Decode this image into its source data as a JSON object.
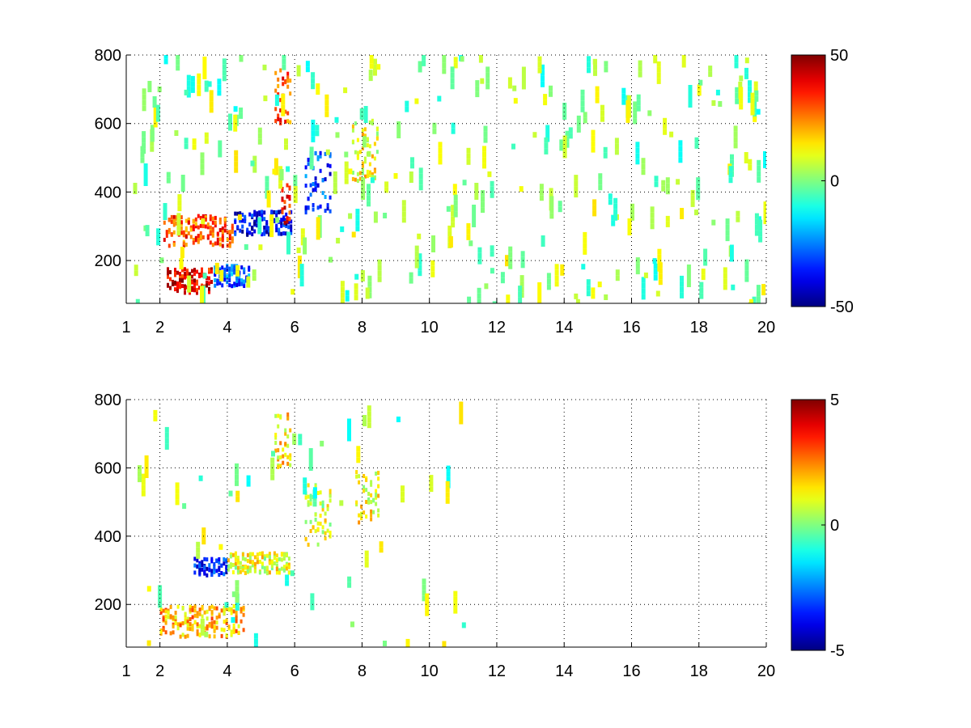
{
  "figure": {
    "background": "#ffffff"
  },
  "chart_data": [
    {
      "type": "heatmap",
      "colormap": "jet",
      "xlim": [
        1,
        20
      ],
      "ylim": [
        75,
        800
      ],
      "x_ticks": [
        {
          "v": 1,
          "label": "1"
        },
        {
          "v": 2,
          "label": "2"
        },
        {
          "v": 4,
          "label": "4"
        },
        {
          "v": 6,
          "label": "6"
        },
        {
          "v": 8,
          "label": "8"
        },
        {
          "v": 10,
          "label": "10"
        },
        {
          "v": 12,
          "label": "12"
        },
        {
          "v": 14,
          "label": "14"
        },
        {
          "v": 16,
          "label": "16"
        },
        {
          "v": 18,
          "label": "18"
        },
        {
          "v": 20,
          "label": "20"
        }
      ],
      "y_ticks": [
        {
          "v": 200,
          "label": "200"
        },
        {
          "v": 400,
          "label": "400"
        },
        {
          "v": 600,
          "label": "600"
        },
        {
          "v": 800,
          "label": "800"
        }
      ],
      "grid": true,
      "colorbar": {
        "range": [
          -50,
          50
        ],
        "ticks": [
          {
            "v": 50,
            "label": "50"
          },
          {
            "v": 0,
            "label": "0"
          },
          {
            "v": -50,
            "label": "-50"
          }
        ]
      },
      "features": [
        {
          "x": [
            2.2,
            3.6
          ],
          "y": 140,
          "y_spread": 35,
          "value": 40
        },
        {
          "x": [
            3.6,
            4.7
          ],
          "y": 155,
          "y_spread": 30,
          "value": -28
        },
        {
          "x": [
            2.1,
            4.2
          ],
          "y": 285,
          "y_spread": 45,
          "value": 30
        },
        {
          "x": [
            4.2,
            5.9
          ],
          "y": 310,
          "y_spread": 35,
          "value": -38
        },
        {
          "x": [
            5.6,
            5.9
          ],
          "y": 370,
          "y_spread": 60,
          "value": 35
        },
        {
          "x": [
            6.3,
            7.1
          ],
          "y": 430,
          "y_spread": 90,
          "value": -32
        },
        {
          "x": [
            5.4,
            5.9
          ],
          "y": 680,
          "y_spread": 80,
          "value": 30
        },
        {
          "x": [
            7.7,
            8.5
          ],
          "y": 520,
          "y_spread": 90,
          "value": 12
        }
      ]
    },
    {
      "type": "heatmap",
      "colormap": "jet",
      "xlim": [
        1,
        20
      ],
      "ylim": [
        75,
        800
      ],
      "x_ticks": [
        {
          "v": 1,
          "label": "1"
        },
        {
          "v": 2,
          "label": "2"
        },
        {
          "v": 4,
          "label": "4"
        },
        {
          "v": 6,
          "label": "6"
        },
        {
          "v": 8,
          "label": "8"
        },
        {
          "v": 10,
          "label": "10"
        },
        {
          "v": 12,
          "label": "12"
        },
        {
          "v": 14,
          "label": "14"
        },
        {
          "v": 16,
          "label": "16"
        },
        {
          "v": 18,
          "label": "18"
        },
        {
          "v": 20,
          "label": "20"
        }
      ],
      "y_ticks": [
        {
          "v": 200,
          "label": "200"
        },
        {
          "v": 400,
          "label": "400"
        },
        {
          "v": 600,
          "label": "600"
        },
        {
          "v": 800,
          "label": "800"
        }
      ],
      "grid": true,
      "colorbar": {
        "range": [
          -5,
          5
        ],
        "ticks": [
          {
            "v": 5,
            "label": "5"
          },
          {
            "v": 0,
            "label": "0"
          },
          {
            "v": -5,
            "label": "-5"
          }
        ]
      },
      "features": [
        {
          "x": [
            2.0,
            4.5
          ],
          "y": 150,
          "y_spread": 45,
          "value": 2
        },
        {
          "x": [
            3.0,
            4.0
          ],
          "y": 310,
          "y_spread": 25,
          "value": -3.5
        },
        {
          "x": [
            4.0,
            5.9
          ],
          "y": 320,
          "y_spread": 30,
          "value": 1
        },
        {
          "x": [
            6.3,
            7.1
          ],
          "y": 460,
          "y_spread": 90,
          "value": 0.8
        },
        {
          "x": [
            5.4,
            5.9
          ],
          "y": 680,
          "y_spread": 80,
          "value": 1.5
        },
        {
          "x": [
            7.8,
            8.5
          ],
          "y": 520,
          "y_spread": 80,
          "value": 1.2
        }
      ]
    }
  ]
}
